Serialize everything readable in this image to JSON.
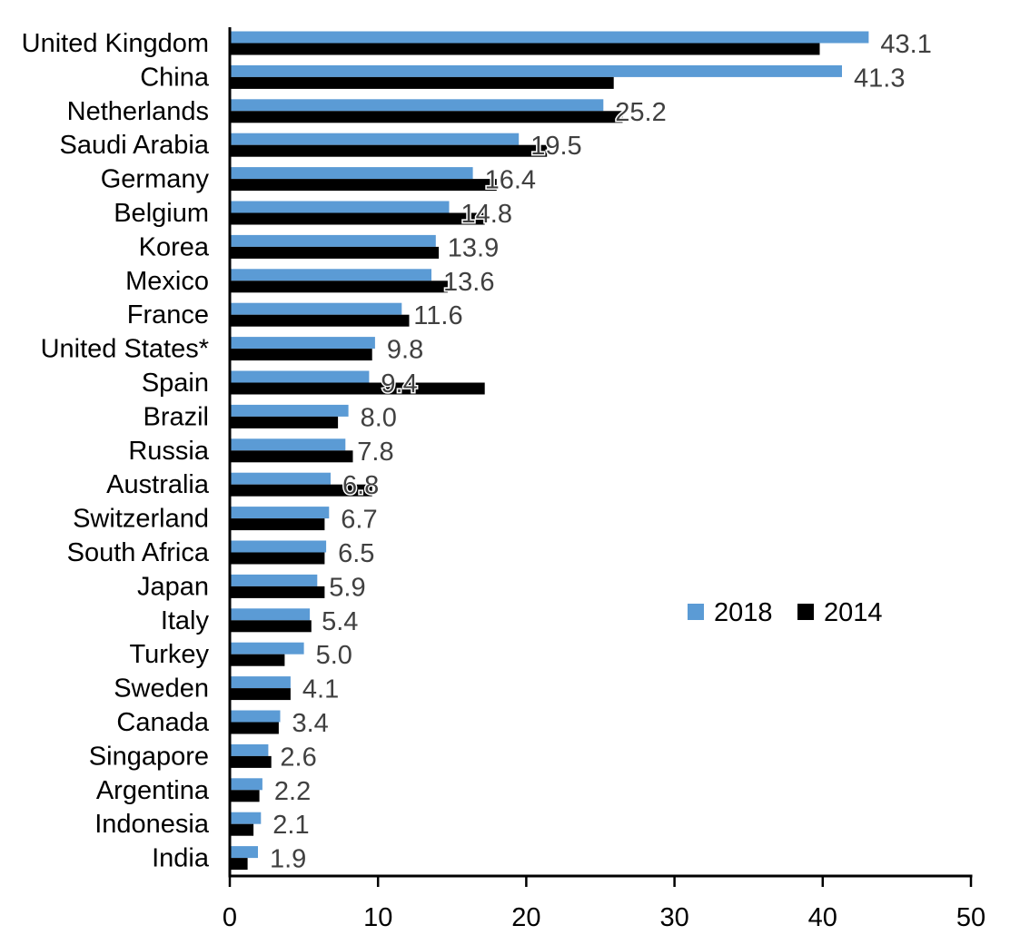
{
  "chart_data": {
    "type": "bar",
    "orientation": "horizontal",
    "title": "",
    "xlabel": "",
    "ylabel": "",
    "xlim": [
      0,
      50
    ],
    "x_ticks": [
      "0",
      "10",
      "20",
      "30",
      "40",
      "50"
    ],
    "grid": false,
    "legend_position": "middle-right",
    "categories": [
      "United Kingdom",
      "China",
      "Netherlands",
      "Saudi Arabia",
      "Germany",
      "Belgium",
      "Korea",
      "Mexico",
      "France",
      "United States*",
      "Spain",
      "Brazil",
      "Russia",
      "Australia",
      "Switzerland",
      "South Africa",
      "Japan",
      "Italy",
      "Turkey",
      "Sweden",
      "Canada",
      "Singapore",
      "Argentina",
      "Indonesia",
      "India"
    ],
    "series": [
      {
        "name": "2018",
        "color": "#5B9BD5",
        "values": [
          43.1,
          41.3,
          25.2,
          19.5,
          16.4,
          14.8,
          13.9,
          13.6,
          11.6,
          9.8,
          9.4,
          8.0,
          7.8,
          6.8,
          6.7,
          6.5,
          5.9,
          5.4,
          5.0,
          4.1,
          3.4,
          2.6,
          2.2,
          2.1,
          1.9
        ]
      },
      {
        "name": "2014",
        "color": "#000000",
        "values": [
          39.8,
          25.9,
          26.5,
          21.4,
          18.0,
          17.2,
          14.1,
          14.7,
          12.1,
          9.6,
          17.2,
          7.3,
          8.3,
          9.6,
          6.4,
          6.4,
          6.4,
          5.5,
          3.7,
          4.1,
          3.3,
          2.8,
          2.0,
          1.6,
          1.2
        ]
      }
    ],
    "data_labels": [
      "43.1",
      "41.3",
      "25.2",
      "19.5",
      "16.4",
      "14.8",
      "13.9",
      "13.6",
      "11.6",
      "9.8",
      "9.4",
      "8.0",
      "7.8",
      "6.8",
      "6.7",
      "6.5",
      "5.9",
      "5.4",
      "5.0",
      "4.1",
      "3.4",
      "2.6",
      "2.2",
      "2.1",
      "1.9"
    ],
    "data_label_color": "#404040",
    "axis_color": "#000000",
    "legend": {
      "items": [
        {
          "label": "2018",
          "color": "#5B9BD5"
        },
        {
          "label": "2014",
          "color": "#000000"
        }
      ]
    }
  }
}
